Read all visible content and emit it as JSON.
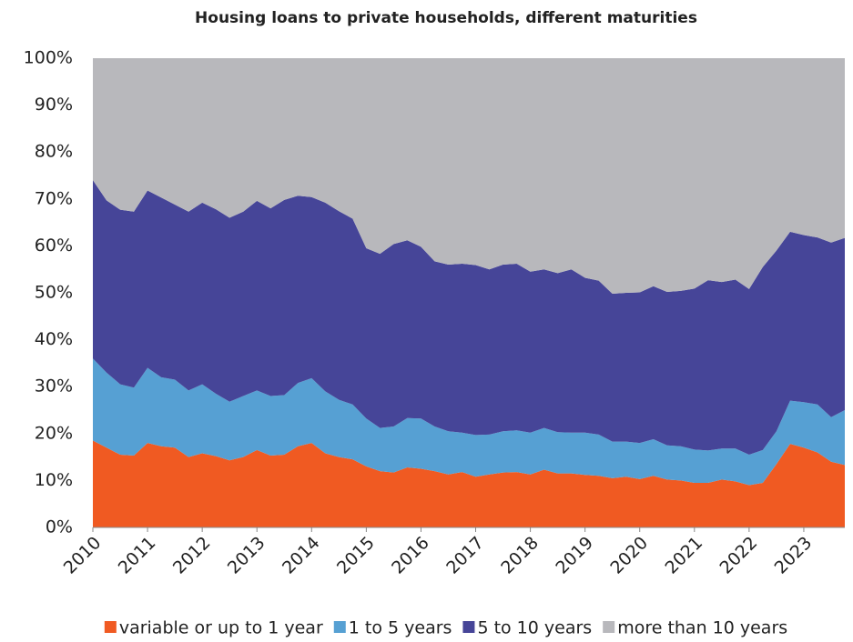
{
  "chart_data": {
    "type": "stacked_area",
    "title": "Housing loans to private households, different maturities",
    "x": [
      2010,
      2010.25,
      2010.5,
      2010.75,
      2011,
      2011.25,
      2011.5,
      2011.75,
      2012,
      2012.25,
      2012.5,
      2012.75,
      2013,
      2013.25,
      2013.5,
      2013.75,
      2014,
      2014.25,
      2014.5,
      2014.75,
      2015,
      2015.25,
      2015.5,
      2015.75,
      2016,
      2016.25,
      2016.5,
      2016.75,
      2017,
      2017.25,
      2017.5,
      2017.75,
      2018,
      2018.25,
      2018.5,
      2018.75,
      2019,
      2019.25,
      2019.5,
      2019.75,
      2020,
      2020.25,
      2020.5,
      2020.75,
      2021,
      2021.25,
      2021.5,
      2021.75,
      2022,
      2022.25,
      2022.5,
      2022.75,
      2023,
      2023.25,
      2023.5,
      2023.75
    ],
    "series": [
      {
        "name": "variable or up to 1 year",
        "color": "#f05a22",
        "values": [
          18.5,
          17,
          15.5,
          15.3,
          18,
          17.3,
          17,
          15,
          15.8,
          15.2,
          14.3,
          15,
          16.5,
          15.3,
          15.5,
          17.3,
          18,
          15.8,
          15,
          14.5,
          13,
          12,
          11.7,
          12.8,
          12.5,
          12,
          11.3,
          11.8,
          10.8,
          11.3,
          11.7,
          11.8,
          11.3,
          12.3,
          11.5,
          11.5,
          11.2,
          11,
          10.5,
          10.8,
          10.3,
          11,
          10.2,
          10,
          9.5,
          9.5,
          10.2,
          9.8,
          9,
          9.5,
          13.5,
          17.8,
          17,
          16,
          14,
          13.3
        ]
      },
      {
        "name": "1 to 5 years",
        "color": "#56a0d3",
        "values": [
          17.5,
          16,
          15,
          14.5,
          16,
          14.7,
          14.5,
          14.2,
          14.7,
          13.3,
          12.5,
          13,
          12.7,
          12.7,
          12.7,
          13.5,
          13.8,
          13.2,
          12.2,
          11.7,
          10.2,
          9.2,
          9.8,
          10.5,
          10.7,
          9.5,
          9.2,
          8.4,
          8.9,
          8.5,
          8.8,
          8.9,
          8.9,
          8.9,
          8.8,
          8.7,
          9,
          8.8,
          7.8,
          7.5,
          7.7,
          7.8,
          7.3,
          7.3,
          7.1,
          6.9,
          6.6,
          7,
          6.5,
          7,
          7,
          9.2,
          9.7,
          10.2,
          9.5,
          11.7
        ]
      },
      {
        "name": "5 to 10 years",
        "color": "#464598",
        "values": [
          38,
          36.7,
          37.2,
          37.5,
          37.8,
          38.3,
          37.3,
          38.1,
          38.7,
          39.3,
          39.2,
          39.3,
          40.4,
          40,
          41.6,
          39.9,
          38.6,
          40.2,
          40.2,
          39.6,
          36.3,
          37.1,
          38.9,
          37.9,
          36.6,
          35.2,
          35.5,
          36,
          36.2,
          35.2,
          35.5,
          35.5,
          34.3,
          33.8,
          33.9,
          34.8,
          33,
          32.8,
          31.5,
          31.7,
          32.1,
          32.6,
          32.7,
          33.1,
          34.3,
          36.3,
          35.5,
          36,
          35.3,
          39,
          38.5,
          36,
          35.6,
          35.6,
          37.2,
          36.7
        ]
      },
      {
        "name": "more than 10 years",
        "color": "#b8b8bc",
        "values": [
          26,
          30.3,
          32.3,
          32.7,
          28.2,
          29.7,
          31.2,
          32.7,
          30.8,
          32.2,
          34,
          32.7,
          30.4,
          32,
          30.2,
          29.3,
          29.6,
          30.8,
          32.6,
          34.2,
          40.5,
          41.7,
          39.6,
          38.8,
          40.2,
          43.3,
          44,
          43.8,
          44.1,
          45,
          44,
          43.8,
          45.5,
          45,
          45.8,
          45,
          46.8,
          47.4,
          50.2,
          50,
          49.9,
          48.6,
          49.8,
          49.6,
          49.1,
          47.3,
          47.7,
          47.2,
          49.2,
          44.5,
          41,
          37,
          37.7,
          38.2,
          39.3,
          38.3
        ]
      }
    ],
    "xlim": [
      2010,
      2023.75
    ],
    "xticks": [
      2010,
      2011,
      2012,
      2013,
      2014,
      2015,
      2016,
      2017,
      2018,
      2019,
      2020,
      2021,
      2022,
      2023
    ],
    "ylim": [
      0,
      100
    ],
    "yticks": [
      {
        "value": 0,
        "label": "0%"
      },
      {
        "value": 10,
        "label": "10%"
      },
      {
        "value": 20,
        "label": "20%"
      },
      {
        "value": 30,
        "label": "30%"
      },
      {
        "value": 40,
        "label": "40%"
      },
      {
        "value": 50,
        "label": "50%"
      },
      {
        "value": 60,
        "label": "60%"
      },
      {
        "value": 70,
        "label": "70%"
      },
      {
        "value": 80,
        "label": "80%"
      },
      {
        "value": 90,
        "label": "90%"
      },
      {
        "value": 100,
        "label": "100%"
      }
    ],
    "grid": false,
    "legend": "bottom"
  }
}
